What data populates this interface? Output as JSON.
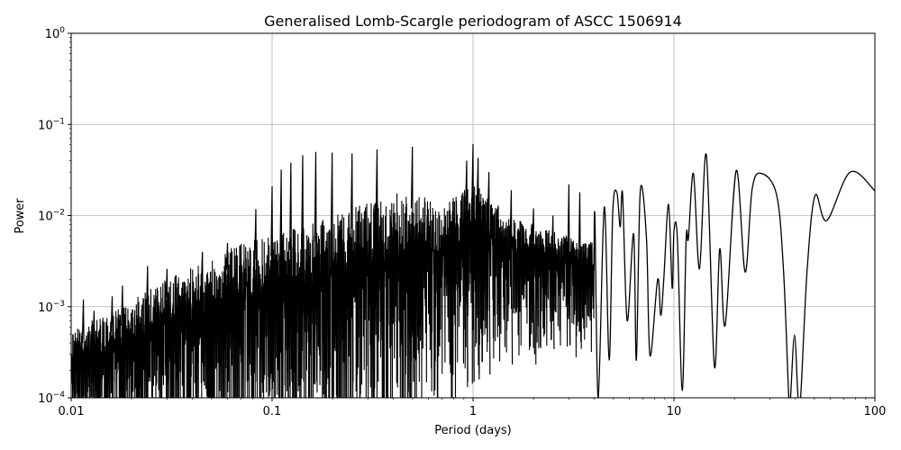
{
  "chart_data": {
    "type": "line",
    "title": "Generalised Lomb-Scargle periodogram of ASCC 1506914",
    "xlabel": "Period (days)",
    "ylabel": "Power",
    "xscale": "log",
    "yscale": "log",
    "xlim": [
      0.01,
      100
    ],
    "ylim": [
      0.0001,
      1
    ],
    "grid": true,
    "line_color": "#000000",
    "grid_color": "#b0b0b0",
    "x_ticks": [
      {
        "value": 0.01,
        "label": "0.01"
      },
      {
        "value": 0.1,
        "label": "0.1"
      },
      {
        "value": 1,
        "label": "1"
      },
      {
        "value": 10,
        "label": "10"
      },
      {
        "value": 100,
        "label": "100"
      }
    ],
    "y_ticks": [
      {
        "value": 0.0001,
        "base": "10",
        "exp": "−4"
      },
      {
        "value": 0.001,
        "base": "10",
        "exp": "−3"
      },
      {
        "value": 0.01,
        "base": "10",
        "exp": "−2"
      },
      {
        "value": 0.1,
        "base": "10",
        "exp": "−1"
      },
      {
        "value": 1,
        "base": "10",
        "exp": "0"
      }
    ],
    "dense_region": {
      "period_range": [
        0.01,
        4.0
      ],
      "upper_envelope": [
        [
          0.01,
          0.0006
        ],
        [
          0.015,
          0.0008
        ],
        [
          0.02,
          0.0012
        ],
        [
          0.03,
          0.002
        ],
        [
          0.05,
          0.0035
        ],
        [
          0.07,
          0.005
        ],
        [
          0.1,
          0.006
        ],
        [
          0.15,
          0.008
        ],
        [
          0.2,
          0.01
        ],
        [
          0.3,
          0.014
        ],
        [
          0.5,
          0.02
        ],
        [
          0.7,
          0.012
        ],
        [
          1.0,
          0.025
        ],
        [
          1.5,
          0.01
        ],
        [
          2.0,
          0.008
        ],
        [
          3.0,
          0.006
        ],
        [
          4.0,
          0.005
        ]
      ],
      "lower_envelope": [
        [
          0.01,
          1e-05
        ],
        [
          0.45,
          1e-05
        ],
        [
          0.6,
          6e-05
        ],
        [
          1.0,
          0.0001
        ],
        [
          2.0,
          0.0002
        ],
        [
          4.0,
          0.0003
        ]
      ]
    },
    "peaks": [
      [
        0.0115,
        0.0012
      ],
      [
        0.013,
        0.0009
      ],
      [
        0.016,
        0.0013
      ],
      [
        0.018,
        0.0017
      ],
      [
        0.024,
        0.0028
      ],
      [
        0.03,
        0.0026
      ],
      [
        0.045,
        0.004
      ],
      [
        0.06,
        0.005
      ],
      [
        0.083,
        0.0118
      ],
      [
        0.1,
        0.021
      ],
      [
        0.111,
        0.032
      ],
      [
        0.124,
        0.038
      ],
      [
        0.142,
        0.046
      ],
      [
        0.165,
        0.05
      ],
      [
        0.199,
        0.049
      ],
      [
        0.25,
        0.048
      ],
      [
        0.333,
        0.053
      ],
      [
        0.499,
        0.057
      ],
      [
        0.93,
        0.04
      ],
      [
        1.0,
        0.061
      ],
      [
        1.06,
        0.043
      ],
      [
        1.2,
        0.03
      ],
      [
        1.55,
        0.019
      ],
      [
        2.0,
        0.012
      ],
      [
        2.5,
        0.01
      ],
      [
        3.0,
        0.022
      ],
      [
        3.4,
        0.018
      ]
    ],
    "smooth_series": [
      [
        4.04,
        0.01
      ],
      [
        4.2,
        0.0001
      ],
      [
        4.5,
        0.0124
      ],
      [
        4.76,
        0.00026
      ],
      [
        4.96,
        0.011
      ],
      [
        5.2,
        0.018
      ],
      [
        5.4,
        0.0075
      ],
      [
        5.55,
        0.0173
      ],
      [
        5.85,
        0.0007
      ],
      [
        6.3,
        0.0063
      ],
      [
        6.5,
        0.00026
      ],
      [
        6.8,
        0.0187
      ],
      [
        7.3,
        0.0056
      ],
      [
        7.6,
        0.00029
      ],
      [
        8.3,
        0.002
      ],
      [
        8.6,
        0.0008
      ],
      [
        8.9,
        0.002
      ],
      [
        9.4,
        0.0133
      ],
      [
        9.8,
        0.0016
      ],
      [
        10,
        0.0067
      ],
      [
        10.4,
        0.0056
      ],
      [
        11,
        0.00012
      ],
      [
        11.5,
        0.0055
      ],
      [
        11.8,
        0.0056
      ],
      [
        12.5,
        0.029
      ],
      [
        13.4,
        0.0026
      ],
      [
        14.5,
        0.046
      ],
      [
        15.9,
        0.00022
      ],
      [
        16.9,
        0.0043
      ],
      [
        18,
        0.00063
      ],
      [
        20.4,
        0.031
      ],
      [
        22.6,
        0.0024
      ],
      [
        24.5,
        0.0195
      ],
      [
        27.2,
        0.029
      ],
      [
        32.4,
        0.017
      ],
      [
        35.1,
        0.0025
      ],
      [
        37.3,
        0.0001
      ],
      [
        38,
        5e-05
      ],
      [
        39.8,
        0.00049
      ],
      [
        41.5,
        5e-05
      ],
      [
        42.7,
        0.0001
      ],
      [
        46,
        0.0025
      ],
      [
        50.4,
        0.0166
      ],
      [
        57.6,
        0.0088
      ],
      [
        75.4,
        0.03
      ],
      [
        100,
        0.0187
      ]
    ]
  }
}
